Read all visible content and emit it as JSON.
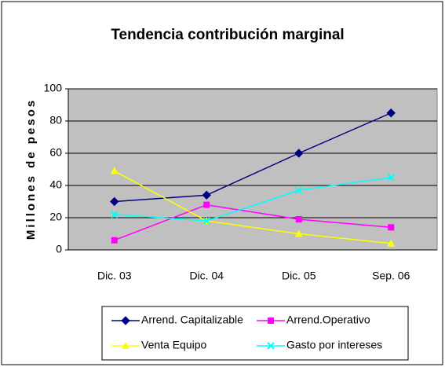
{
  "chart_data": {
    "type": "line",
    "title": "Tendencia contribución marginal",
    "y_label": "Millones de pesos",
    "categories": [
      "Dic. 03",
      "Dic. 04",
      "Dic. 05",
      "Sep. 06"
    ],
    "series": [
      {
        "name": "Arrend. Capitalizable",
        "color": "#000080",
        "marker": "diamond",
        "values": [
          30,
          34,
          60,
          85
        ]
      },
      {
        "name": "Arrend.Operativo",
        "color": "#ff00ff",
        "marker": "square",
        "values": [
          6,
          28,
          19,
          14
        ]
      },
      {
        "name": "Venta Equipo",
        "color": "#ffff00",
        "marker": "triangle",
        "values": [
          49,
          18,
          10,
          4
        ]
      },
      {
        "name": "Gasto por intereses",
        "color": "#00ffff",
        "marker": "x",
        "values": [
          22,
          18,
          37,
          45
        ]
      }
    ],
    "ylim": [
      0,
      100
    ],
    "yticks": [
      0,
      20,
      40,
      60,
      80,
      100
    ],
    "grid": true
  }
}
